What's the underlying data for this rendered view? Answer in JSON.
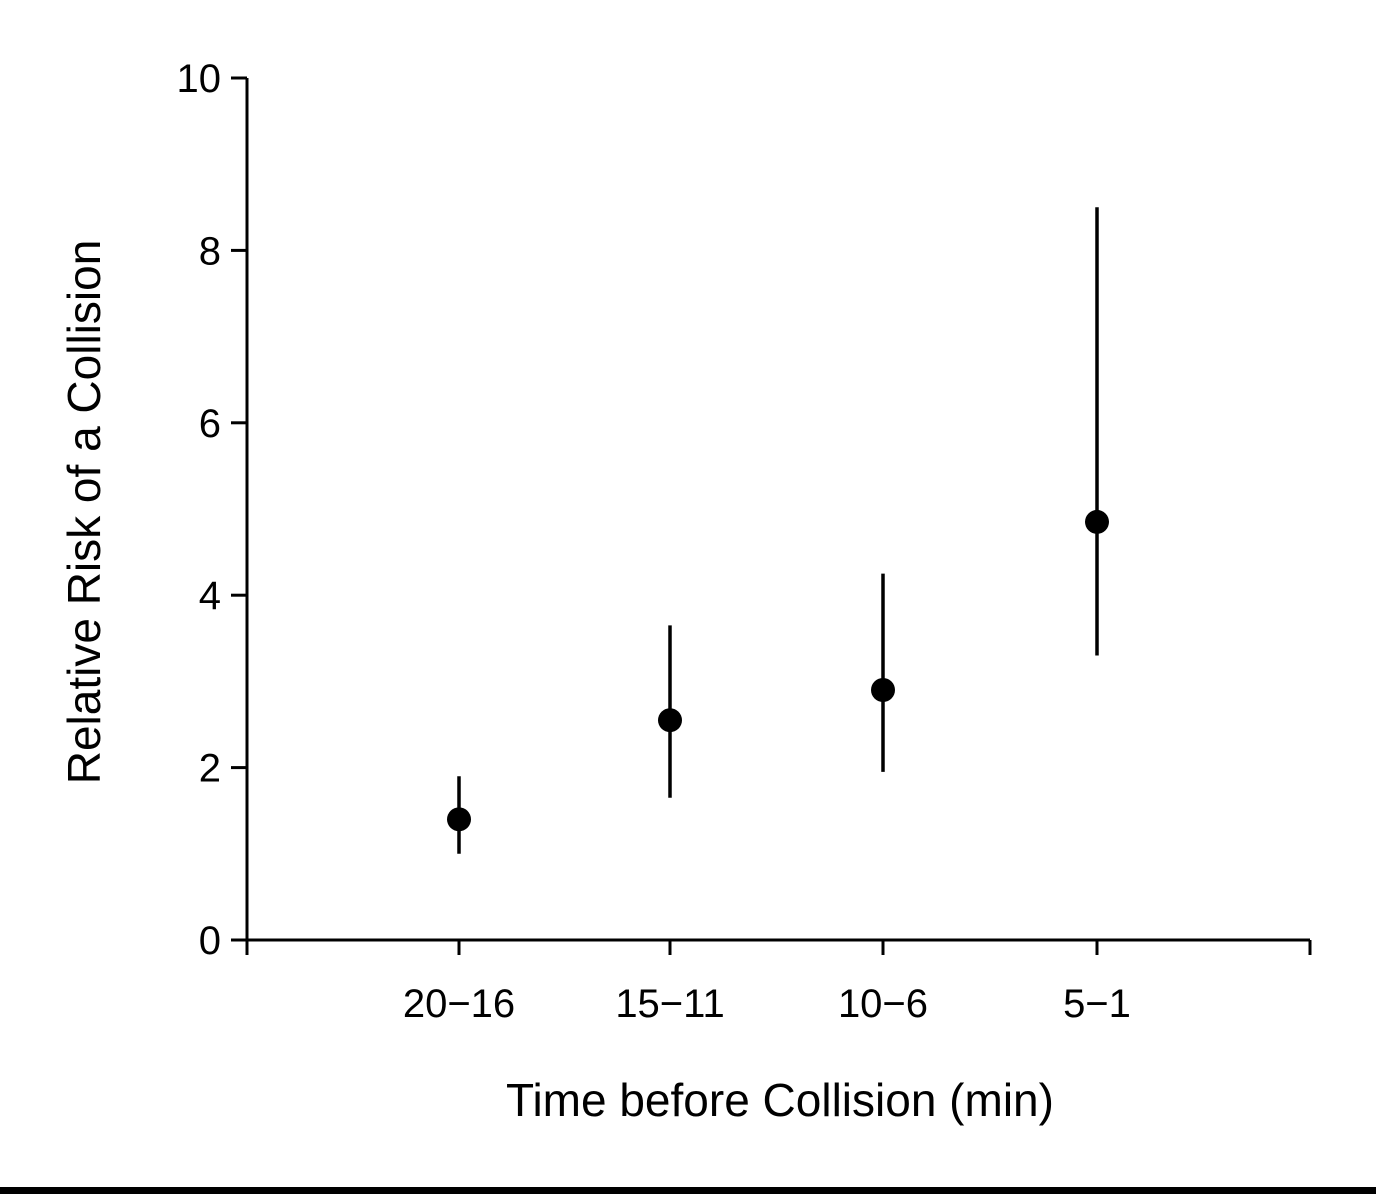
{
  "chart_data": {
    "type": "scatter",
    "xlabel": "Time before Collision (min)",
    "ylabel": "Relative Risk of a Collision",
    "categories": [
      "20−16",
      "15−11",
      "10−6",
      "5−1"
    ],
    "ylim": [
      0,
      10
    ],
    "yticks": [
      0,
      2,
      4,
      6,
      8,
      10
    ],
    "grid": false,
    "legend": "none",
    "series": [
      {
        "values": [
          1.4,
          2.55,
          2.9,
          4.85
        ],
        "error_low": [
          1.0,
          1.65,
          1.95,
          3.3
        ],
        "error_high": [
          1.9,
          3.65,
          4.25,
          8.5
        ]
      }
    ],
    "colors": {
      "marker": "#000000",
      "axis": "#000000"
    }
  }
}
